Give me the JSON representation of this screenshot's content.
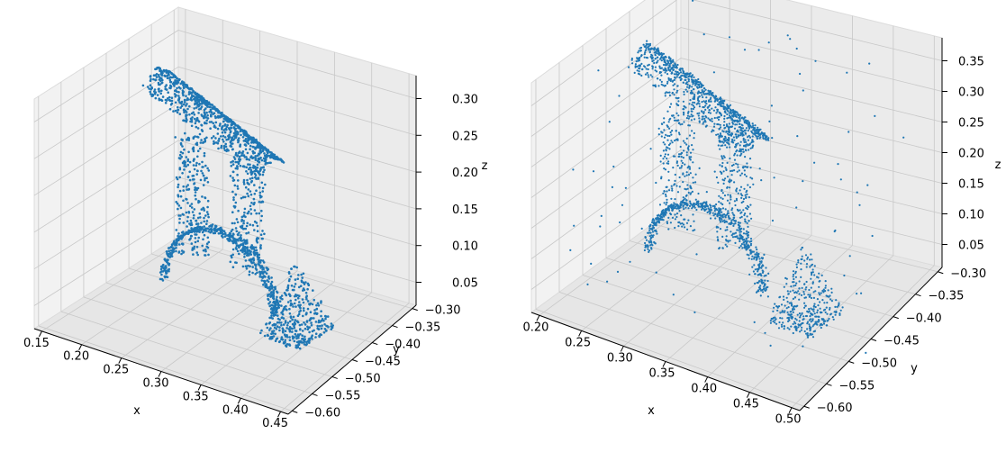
{
  "colors": {
    "marker": "#1f77b4",
    "pane_left": "#f2f2f2",
    "pane_right": "#ebebeb",
    "pane_floor": "#e6e6e6",
    "grid": "#c8c8c8"
  },
  "chart_data": [
    {
      "type": "scatter",
      "projection": "3d",
      "title": "",
      "xlabel": "x",
      "ylabel": "y",
      "zlabel": "z",
      "xlim": [
        0.15,
        0.47
      ],
      "ylim": [
        -0.61,
        -0.3
      ],
      "zlim": [
        0.0,
        0.34
      ],
      "x_ticks": [
        "0.15",
        "0.20",
        "0.25",
        "0.30",
        "0.35",
        "0.40",
        "0.45"
      ],
      "y_ticks": [
        "−0.30",
        "−0.35",
        "−0.40",
        "−0.45",
        "−0.50",
        "−0.55",
        "−0.60"
      ],
      "z_ticks": [
        "0.05",
        "0.10",
        "0.15",
        "0.20",
        "0.25",
        "0.30"
      ],
      "grid": true,
      "marker_size": "small",
      "outliers": false
    },
    {
      "type": "scatter",
      "projection": "3d",
      "title": "",
      "xlabel": "x",
      "ylabel": "y",
      "zlabel": "z",
      "xlim": [
        0.17,
        0.5
      ],
      "ylim": [
        -0.62,
        -0.29
      ],
      "zlim": [
        0.0,
        0.35
      ],
      "x_ticks": [
        "0.20",
        "0.25",
        "0.30",
        "0.35",
        "0.40",
        "0.45",
        "0.50"
      ],
      "y_ticks": [
        "−0.30",
        "−0.35",
        "−0.40",
        "−0.45",
        "−0.50",
        "−0.55",
        "−0.60"
      ],
      "z_ticks": [
        "0.05",
        "0.10",
        "0.15",
        "0.20",
        "0.25",
        "0.30",
        "0.35"
      ],
      "grid": true,
      "marker_size": "small",
      "outliers": true
    }
  ]
}
